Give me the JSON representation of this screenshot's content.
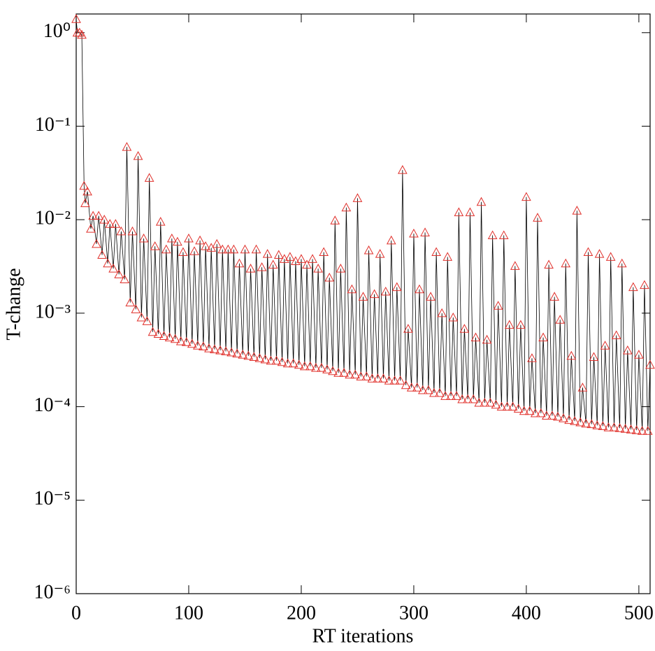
{
  "chart_data": {
    "type": "line",
    "xlabel": "RT iterations",
    "ylabel": "T-change",
    "xlim": [
      0,
      510
    ],
    "xticks": [
      0,
      100,
      200,
      300,
      400,
      500
    ],
    "ylim": [
      1e-06,
      1.585
    ],
    "log_y": true,
    "yticks": [
      {
        "value": 1e-06,
        "label": "10⁻⁶"
      },
      {
        "value": 1e-05,
        "label": "10⁻⁵"
      },
      {
        "value": 0.0001,
        "label": "10⁻⁴"
      },
      {
        "value": 0.001,
        "label": "10⁻³"
      },
      {
        "value": 0.01,
        "label": "10⁻²"
      },
      {
        "value": 0.1,
        "label": "10⁻¹"
      },
      {
        "value": 1,
        "label": "10⁰"
      }
    ],
    "line_color": "#000000",
    "marker_color": "#e0302b",
    "x": [
      0,
      1,
      3,
      5,
      7,
      8,
      10,
      13,
      15,
      18,
      20,
      23,
      25,
      28,
      30,
      33,
      35,
      38,
      40,
      43,
      45,
      48,
      50,
      53,
      55,
      58,
      60,
      63,
      65,
      68,
      70,
      73,
      75,
      78,
      80,
      83,
      85,
      88,
      90,
      93,
      95,
      98,
      100,
      103,
      105,
      108,
      110,
      113,
      115,
      118,
      120,
      123,
      125,
      128,
      130,
      133,
      135,
      138,
      140,
      143,
      145,
      148,
      150,
      153,
      155,
      158,
      160,
      163,
      165,
      168,
      170,
      173,
      175,
      178,
      180,
      183,
      185,
      188,
      190,
      193,
      195,
      198,
      200,
      203,
      205,
      208,
      210,
      213,
      215,
      218,
      220,
      223,
      225,
      228,
      230,
      233,
      235,
      238,
      240,
      243,
      245,
      248,
      250,
      253,
      255,
      258,
      260,
      263,
      265,
      268,
      270,
      273,
      275,
      278,
      280,
      283,
      285,
      288,
      290,
      293,
      295,
      298,
      300,
      303,
      305,
      308,
      310,
      313,
      315,
      318,
      320,
      323,
      325,
      328,
      330,
      333,
      335,
      338,
      340,
      343,
      345,
      348,
      350,
      353,
      355,
      358,
      360,
      363,
      365,
      368,
      370,
      373,
      375,
      378,
      380,
      383,
      385,
      388,
      390,
      393,
      395,
      398,
      400,
      403,
      405,
      408,
      410,
      413,
      415,
      418,
      420,
      423,
      425,
      428,
      430,
      433,
      435,
      438,
      440,
      443,
      445,
      448,
      450,
      453,
      455,
      458,
      460,
      463,
      465,
      468,
      470,
      473,
      475,
      478,
      480,
      483,
      485,
      488,
      490,
      493,
      495,
      498,
      500,
      503,
      505,
      508,
      510
    ],
    "values": [
      1.4,
      1,
      1,
      0.95,
      0.023,
      0.015,
      0.02,
      0.008,
      0.011,
      0.0055,
      0.011,
      0.0042,
      0.01,
      0.0034,
      0.009,
      0.003,
      0.009,
      0.0026,
      0.0075,
      0.0023,
      0.06,
      0.0013,
      0.0075,
      0.0011,
      0.048,
      0.0009,
      0.0063,
      0.00082,
      0.028,
      0.00063,
      0.0052,
      0.0006,
      0.0095,
      0.00057,
      0.0048,
      0.00055,
      0.0063,
      0.00053,
      0.0058,
      0.0005,
      0.0045,
      0.00049,
      0.0063,
      0.00047,
      0.0046,
      0.00045,
      0.006,
      0.00044,
      0.0052,
      0.00042,
      0.005,
      0.00041,
      0.0055,
      0.0004,
      0.0048,
      0.00039,
      0.0048,
      0.00038,
      0.0048,
      0.00037,
      0.0034,
      0.00036,
      0.0048,
      0.00035,
      0.003,
      0.00034,
      0.0048,
      0.00033,
      0.0031,
      0.00032,
      0.0043,
      0.00031,
      0.0033,
      0.00031,
      0.0042,
      0.0003,
      0.0038,
      0.00029,
      0.004,
      0.00029,
      0.0036,
      0.00028,
      0.0038,
      0.00027,
      0.0033,
      0.00027,
      0.0038,
      0.00026,
      0.003,
      0.00026,
      0.0045,
      0.00025,
      0.0024,
      0.00024,
      0.0098,
      0.00023,
      0.003,
      0.00023,
      0.0135,
      0.00022,
      0.0018,
      0.00022,
      0.017,
      0.00021,
      0.0015,
      0.00021,
      0.0047,
      0.0002,
      0.0016,
      0.0002,
      0.0043,
      0.0002,
      0.0017,
      0.00019,
      0.006,
      0.00019,
      0.0019,
      0.00019,
      0.034,
      0.00017,
      0.00068,
      0.00016,
      0.0071,
      0.00016,
      0.0018,
      0.00015,
      0.0073,
      0.00015,
      0.0015,
      0.00014,
      0.0045,
      0.00014,
      0.001,
      0.00013,
      0.004,
      0.00013,
      0.0009,
      0.00013,
      0.012,
      0.00012,
      0.00068,
      0.00012,
      0.012,
      0.00012,
      0.00055,
      0.00011,
      0.0155,
      0.00011,
      0.00052,
      0.00011,
      0.0068,
      0.000105,
      0.0012,
      0.0001,
      0.0068,
      0.0001,
      0.00075,
      0.0001,
      0.0032,
      9.5e-05,
      0.00075,
      9e-05,
      0.0175,
      9e-05,
      0.00033,
      8.5e-05,
      0.0105,
      8.5e-05,
      0.00055,
      8e-05,
      0.0033,
      8e-05,
      0.0015,
      7.8e-05,
      0.00085,
      7.5e-05,
      0.0034,
      7.2e-05,
      0.00035,
      7e-05,
      0.0125,
      6.8e-05,
      0.00016,
      6.6e-05,
      0.0045,
      6.5e-05,
      0.00034,
      6.3e-05,
      0.0043,
      6.2e-05,
      0.00045,
      6e-05,
      0.004,
      6e-05,
      0.00058,
      5.9e-05,
      0.0034,
      5.8e-05,
      0.0004,
      5.7e-05,
      0.0019,
      5.6e-05,
      0.00036,
      5.5e-05,
      0.002,
      5.5e-05,
      0.00028
    ]
  }
}
